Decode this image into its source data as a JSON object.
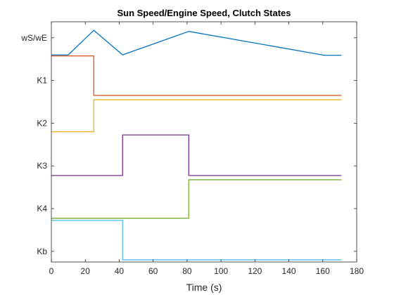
{
  "chart_data": {
    "type": "line",
    "title": "Sun Speed/Engine Speed, Clutch States",
    "xlabel": "Time (s)",
    "ylabel": "",
    "xlim": [
      0,
      180
    ],
    "x_ticks": [
      0,
      20,
      40,
      60,
      80,
      100,
      120,
      140,
      160,
      180
    ],
    "ylim": [
      0,
      11.25
    ],
    "y_ticks": [
      {
        "label": "Kb",
        "value": 0.5
      },
      {
        "label": "K4",
        "value": 2.5
      },
      {
        "label": "K3",
        "value": 4.5
      },
      {
        "label": "K2",
        "value": 6.5
      },
      {
        "label": "K1",
        "value": 8.5
      },
      {
        "label": "wS/wE",
        "value": 10.5
      }
    ],
    "grid": false,
    "legend": "none",
    "series": [
      {
        "color": "#0072BD",
        "points": [
          [
            0,
            9.7
          ],
          [
            10,
            9.7
          ],
          [
            25,
            10.85
          ],
          [
            42,
            9.7
          ],
          [
            81,
            10.8
          ],
          [
            161,
            9.68
          ],
          [
            171,
            9.68
          ]
        ]
      },
      {
        "color": "#D95319",
        "points": [
          [
            0,
            9.65
          ],
          [
            25,
            9.65
          ],
          [
            25,
            7.8
          ],
          [
            171,
            7.8
          ]
        ]
      },
      {
        "color": "#EDB120",
        "points": [
          [
            0,
            6.1
          ],
          [
            25,
            6.1
          ],
          [
            25,
            7.6
          ],
          [
            171,
            7.6
          ]
        ]
      },
      {
        "color": "#7E2F8E",
        "points": [
          [
            0,
            4.05
          ],
          [
            42,
            4.05
          ],
          [
            42,
            5.95
          ],
          [
            81,
            5.95
          ],
          [
            81,
            4.05
          ],
          [
            171,
            4.05
          ]
        ]
      },
      {
        "color": "#77AC30",
        "points": [
          [
            0,
            2.05
          ],
          [
            81,
            2.05
          ],
          [
            81,
            3.85
          ],
          [
            171,
            3.85
          ]
        ]
      },
      {
        "color": "#4DBEEE",
        "points": [
          [
            0,
            1.95
          ],
          [
            42,
            1.95
          ],
          [
            42,
            0.1
          ],
          [
            171,
            0.1
          ]
        ]
      }
    ]
  }
}
